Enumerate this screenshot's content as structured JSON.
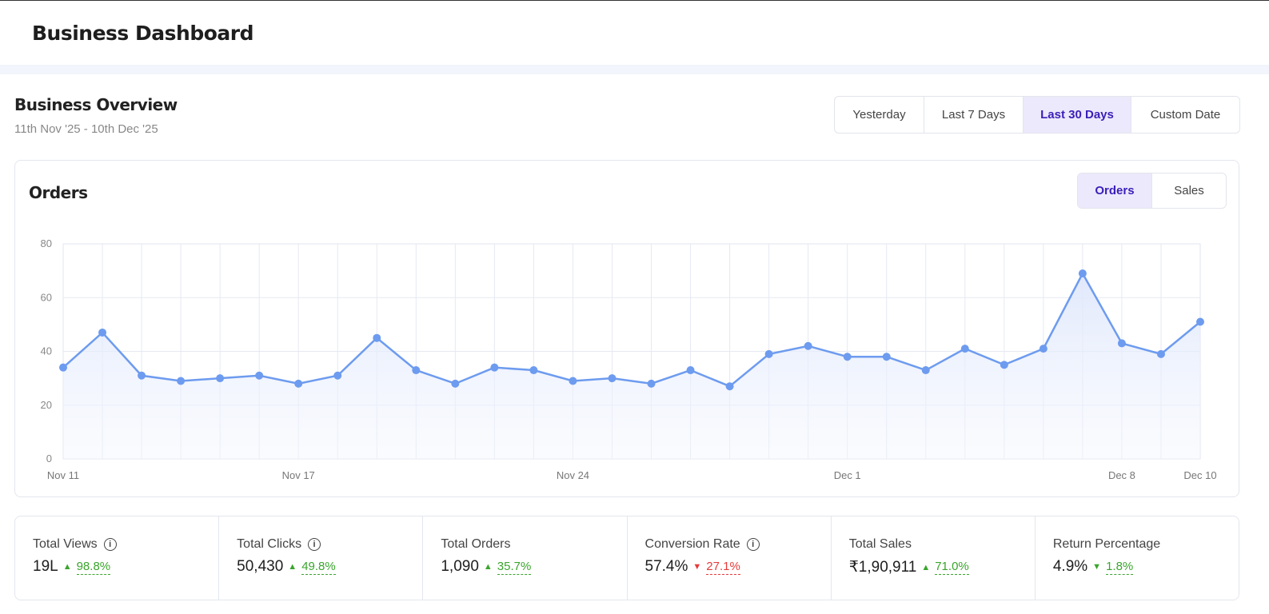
{
  "header": {
    "title": "Business Dashboard"
  },
  "overview": {
    "title": "Business Overview",
    "date_range": "11th Nov '25 - 10th Dec '25",
    "ranges": [
      "Yesterday",
      "Last 7 Days",
      "Last 30 Days",
      "Custom Date"
    ],
    "active_range": "Last 30 Days"
  },
  "chart_card": {
    "title": "Orders",
    "metrics": [
      "Orders",
      "Sales"
    ],
    "active_metric": "Orders"
  },
  "chart_data": {
    "type": "line",
    "title": "Orders",
    "ylim": [
      0,
      80
    ],
    "yticks": [
      0,
      20,
      40,
      60,
      80
    ],
    "grid": true,
    "line_color": "#6d9bef",
    "x_ticks": [
      {
        "index": 0,
        "label": "Nov 11"
      },
      {
        "index": 6,
        "label": "Nov 17"
      },
      {
        "index": 13,
        "label": "Nov 24"
      },
      {
        "index": 20,
        "label": "Dec 1"
      },
      {
        "index": 27,
        "label": "Dec 8"
      },
      {
        "index": 29,
        "label": "Dec 10"
      }
    ],
    "x": [
      "Nov 11",
      "Nov 12",
      "Nov 13",
      "Nov 14",
      "Nov 15",
      "Nov 16",
      "Nov 17",
      "Nov 18",
      "Nov 19",
      "Nov 20",
      "Nov 21",
      "Nov 22",
      "Nov 23",
      "Nov 24",
      "Nov 25",
      "Nov 26",
      "Nov 27",
      "Nov 28",
      "Nov 29",
      "Nov 30",
      "Dec 1",
      "Dec 2",
      "Dec 3",
      "Dec 4",
      "Dec 5",
      "Dec 6",
      "Dec 7",
      "Dec 8",
      "Dec 9",
      "Dec 10"
    ],
    "values": [
      34,
      47,
      31,
      29,
      30,
      31,
      28,
      31,
      45,
      33,
      28,
      34,
      33,
      29,
      30,
      28,
      33,
      27,
      39,
      42,
      38,
      38,
      33,
      41,
      35,
      41,
      69,
      43,
      39,
      51
    ]
  },
  "stats": [
    {
      "label": "Total Views",
      "info": true,
      "value": "19L",
      "change": "98.8%",
      "dir": "up"
    },
    {
      "label": "Total Clicks",
      "info": true,
      "value": "50,430",
      "change": "49.8%",
      "dir": "up"
    },
    {
      "label": "Total Orders",
      "info": false,
      "value": "1,090",
      "change": "35.7%",
      "dir": "up"
    },
    {
      "label": "Conversion Rate",
      "info": true,
      "value": "57.4%",
      "change": "27.1%",
      "dir": "down"
    },
    {
      "label": "Total Sales",
      "info": false,
      "value": "₹1,90,911",
      "change": "71.0%",
      "dir": "up"
    },
    {
      "label": "Return Percentage",
      "info": false,
      "value": "4.9%",
      "change": "1.8%",
      "dir": "down-good"
    }
  ]
}
